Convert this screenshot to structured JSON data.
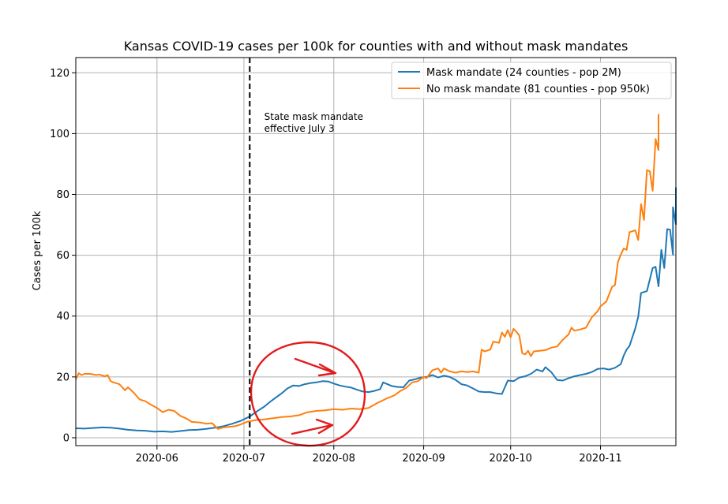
{
  "chart_data": {
    "type": "line",
    "title": "Kansas COVID-19 cases per 100k for counties with and without mask mandates",
    "xlabel": "",
    "ylabel": "Cases per 100k",
    "xlim": [
      "2020-05-04",
      "2020-11-27"
    ],
    "ylim": [
      -2.6,
      125
    ],
    "grid": true,
    "legend_position": "top-right",
    "x_ticks": [
      "2020-06-01",
      "2020-07-01",
      "2020-08-01",
      "2020-09-01",
      "2020-10-01",
      "2020-11-01"
    ],
    "x_tick_labels": [
      "2020-06",
      "2020-07",
      "2020-08",
      "2020-09",
      "2020-10",
      "2020-11"
    ],
    "y_ticks": [
      0,
      20,
      40,
      60,
      80,
      100,
      120
    ],
    "y_tick_labels": [
      "0",
      "20",
      "40",
      "60",
      "80",
      "100",
      "120"
    ],
    "vline": {
      "x": "2020-07-03",
      "style": "dashed",
      "color": "#000000"
    },
    "annotation": {
      "x": "2020-07-08",
      "y": 104.5,
      "lines": [
        "State mask mandate",
        "effective July 3"
      ]
    },
    "series": [
      {
        "name": "Mask mandate (24 counties - pop 2M)",
        "color": "#1f77b4",
        "points": [
          [
            "2020-05-04",
            3.1
          ],
          [
            "2020-05-07",
            3.0
          ],
          [
            "2020-05-10",
            3.2
          ],
          [
            "2020-05-13",
            3.4
          ],
          [
            "2020-05-16",
            3.3
          ],
          [
            "2020-05-19",
            3.0
          ],
          [
            "2020-05-22",
            2.6
          ],
          [
            "2020-05-25",
            2.4
          ],
          [
            "2020-05-28",
            2.3
          ],
          [
            "2020-05-31",
            2.0
          ],
          [
            "2020-06-03",
            2.1
          ],
          [
            "2020-06-06",
            1.9
          ],
          [
            "2020-06-09",
            2.2
          ],
          [
            "2020-06-12",
            2.5
          ],
          [
            "2020-06-15",
            2.6
          ],
          [
            "2020-06-18",
            2.9
          ],
          [
            "2020-06-21",
            3.3
          ],
          [
            "2020-06-24",
            3.8
          ],
          [
            "2020-06-27",
            4.6
          ],
          [
            "2020-06-30",
            5.6
          ],
          [
            "2020-07-03",
            7.0
          ],
          [
            "2020-07-06",
            9.0
          ],
          [
            "2020-07-08",
            10.2
          ],
          [
            "2020-07-10",
            11.8
          ],
          [
            "2020-07-12",
            13.2
          ],
          [
            "2020-07-14",
            14.6
          ],
          [
            "2020-07-16",
            16.2
          ],
          [
            "2020-07-18",
            17.2
          ],
          [
            "2020-07-20",
            17.0
          ],
          [
            "2020-07-22",
            17.6
          ],
          [
            "2020-07-24",
            18.0
          ],
          [
            "2020-07-26",
            18.2
          ],
          [
            "2020-07-28",
            18.6
          ],
          [
            "2020-07-30",
            18.5
          ],
          [
            "2020-08-01",
            17.8
          ],
          [
            "2020-08-03",
            17.2
          ],
          [
            "2020-08-05",
            16.8
          ],
          [
            "2020-08-07",
            16.5
          ],
          [
            "2020-08-09",
            15.8
          ],
          [
            "2020-08-11",
            15.2
          ],
          [
            "2020-08-13",
            15.0
          ],
          [
            "2020-08-15",
            15.4
          ],
          [
            "2020-08-17",
            16.0
          ],
          [
            "2020-08-18",
            18.2
          ],
          [
            "2020-08-19",
            17.8
          ],
          [
            "2020-08-21",
            17.0
          ],
          [
            "2020-08-23",
            16.7
          ],
          [
            "2020-08-25",
            16.6
          ],
          [
            "2020-08-27",
            18.8
          ],
          [
            "2020-08-29",
            19.2
          ],
          [
            "2020-08-31",
            19.8
          ],
          [
            "2020-09-02",
            20.0
          ],
          [
            "2020-09-04",
            20.6
          ],
          [
            "2020-09-06",
            19.8
          ],
          [
            "2020-09-08",
            20.4
          ],
          [
            "2020-09-10",
            20.0
          ],
          [
            "2020-09-12",
            19.0
          ],
          [
            "2020-09-14",
            17.6
          ],
          [
            "2020-09-16",
            17.2
          ],
          [
            "2020-09-18",
            16.2
          ],
          [
            "2020-09-20",
            15.2
          ],
          [
            "2020-09-22",
            15.0
          ],
          [
            "2020-09-24",
            15.0
          ],
          [
            "2020-09-26",
            14.6
          ],
          [
            "2020-09-28",
            14.4
          ],
          [
            "2020-09-30",
            18.8
          ],
          [
            "2020-10-02",
            18.6
          ],
          [
            "2020-10-04",
            19.8
          ],
          [
            "2020-10-06",
            20.2
          ],
          [
            "2020-10-08",
            21.0
          ],
          [
            "2020-10-10",
            22.4
          ],
          [
            "2020-10-12",
            21.8
          ],
          [
            "2020-10-13",
            23.2
          ],
          [
            "2020-10-15",
            21.6
          ],
          [
            "2020-10-17",
            19.0
          ],
          [
            "2020-10-19",
            18.8
          ],
          [
            "2020-10-21",
            19.6
          ],
          [
            "2020-10-23",
            20.2
          ],
          [
            "2020-10-25",
            20.6
          ],
          [
            "2020-10-27",
            21.0
          ],
          [
            "2020-10-29",
            21.6
          ],
          [
            "2020-10-31",
            22.6
          ],
          [
            "2020-11-02",
            22.8
          ],
          [
            "2020-11-04",
            22.4
          ],
          [
            "2020-11-06",
            23.0
          ],
          [
            "2020-11-08",
            24.2
          ],
          [
            "2020-11-09",
            27.0
          ],
          [
            "2020-11-10",
            29.0
          ],
          [
            "2020-11-11",
            30.2
          ],
          [
            "2020-11-13",
            36.0
          ],
          [
            "2020-11-14",
            39.8
          ],
          [
            "2020-11-15",
            47.6
          ],
          [
            "2020-11-17",
            48.2
          ],
          [
            "2020-11-19",
            55.8
          ],
          [
            "2020-11-20",
            56.2
          ],
          [
            "2020-11-21",
            49.8
          ],
          [
            "2020-11-22",
            61.8
          ],
          [
            "2020-11-23",
            55.8
          ],
          [
            "2020-11-24",
            68.6
          ],
          [
            "2020-11-25",
            68.4
          ],
          [
            "2020-11-26",
            60.2
          ],
          [
            "2020-11-26",
            75.8
          ],
          [
            "2020-11-27",
            70.2
          ],
          [
            "2020-11-27",
            82.3
          ]
        ]
      },
      {
        "name": "No mask mandate (81 counties - pop 950k)",
        "color": "#ff7f0e",
        "points": [
          [
            "2020-05-04",
            19.2
          ],
          [
            "2020-05-05",
            21.2
          ],
          [
            "2020-05-06",
            20.6
          ],
          [
            "2020-05-07",
            21.0
          ],
          [
            "2020-05-09",
            21.0
          ],
          [
            "2020-05-11",
            20.6
          ],
          [
            "2020-05-12",
            20.8
          ],
          [
            "2020-05-14",
            20.2
          ],
          [
            "2020-05-15",
            20.6
          ],
          [
            "2020-05-16",
            18.6
          ],
          [
            "2020-05-17",
            18.2
          ],
          [
            "2020-05-19",
            17.6
          ],
          [
            "2020-05-21",
            15.6
          ],
          [
            "2020-05-22",
            16.6
          ],
          [
            "2020-05-24",
            14.8
          ],
          [
            "2020-05-26",
            12.6
          ],
          [
            "2020-05-28",
            12.0
          ],
          [
            "2020-05-30",
            10.8
          ],
          [
            "2020-06-01",
            9.8
          ],
          [
            "2020-06-03",
            8.4
          ],
          [
            "2020-06-05",
            9.2
          ],
          [
            "2020-06-07",
            8.8
          ],
          [
            "2020-06-09",
            7.2
          ],
          [
            "2020-06-11",
            6.4
          ],
          [
            "2020-06-13",
            5.2
          ],
          [
            "2020-06-16",
            5.0
          ],
          [
            "2020-06-18",
            4.6
          ],
          [
            "2020-06-20",
            4.8
          ],
          [
            "2020-06-22",
            2.9
          ],
          [
            "2020-06-24",
            3.4
          ],
          [
            "2020-06-26",
            3.6
          ],
          [
            "2020-06-28",
            3.8
          ],
          [
            "2020-06-30",
            4.4
          ],
          [
            "2020-07-02",
            5.2
          ],
          [
            "2020-07-05",
            5.8
          ],
          [
            "2020-07-08",
            6.0
          ],
          [
            "2020-07-11",
            6.4
          ],
          [
            "2020-07-14",
            6.8
          ],
          [
            "2020-07-17",
            7.0
          ],
          [
            "2020-07-20",
            7.4
          ],
          [
            "2020-07-23",
            8.4
          ],
          [
            "2020-07-26",
            8.8
          ],
          [
            "2020-07-29",
            9.0
          ],
          [
            "2020-08-01",
            9.4
          ],
          [
            "2020-08-04",
            9.2
          ],
          [
            "2020-08-07",
            9.6
          ],
          [
            "2020-08-10",
            9.4
          ],
          [
            "2020-08-13",
            9.8
          ],
          [
            "2020-08-16",
            11.4
          ],
          [
            "2020-08-19",
            12.8
          ],
          [
            "2020-08-22",
            14.0
          ],
          [
            "2020-08-24",
            15.4
          ],
          [
            "2020-08-26",
            16.4
          ],
          [
            "2020-08-28",
            18.2
          ],
          [
            "2020-08-30",
            18.6
          ],
          [
            "2020-09-01",
            20.0
          ],
          [
            "2020-09-02",
            19.6
          ],
          [
            "2020-09-04",
            22.2
          ],
          [
            "2020-09-06",
            22.8
          ],
          [
            "2020-09-07",
            21.4
          ],
          [
            "2020-09-08",
            22.8
          ],
          [
            "2020-09-10",
            21.8
          ],
          [
            "2020-09-12",
            21.4
          ],
          [
            "2020-09-14",
            21.8
          ],
          [
            "2020-09-16",
            21.6
          ],
          [
            "2020-09-18",
            21.8
          ],
          [
            "2020-09-20",
            21.4
          ],
          [
            "2020-09-21",
            29.0
          ],
          [
            "2020-09-22",
            28.4
          ],
          [
            "2020-09-24",
            29.0
          ],
          [
            "2020-09-25",
            31.6
          ],
          [
            "2020-09-27",
            31.2
          ],
          [
            "2020-09-28",
            34.6
          ],
          [
            "2020-09-29",
            33.2
          ],
          [
            "2020-09-30",
            35.4
          ],
          [
            "2020-10-01",
            33.0
          ],
          [
            "2020-10-02",
            35.8
          ],
          [
            "2020-10-03",
            34.8
          ],
          [
            "2020-10-04",
            33.6
          ],
          [
            "2020-10-05",
            27.8
          ],
          [
            "2020-10-06",
            27.4
          ],
          [
            "2020-10-07",
            28.6
          ],
          [
            "2020-10-08",
            26.8
          ],
          [
            "2020-10-09",
            28.4
          ],
          [
            "2020-10-11",
            28.6
          ],
          [
            "2020-10-13",
            28.8
          ],
          [
            "2020-10-15",
            29.6
          ],
          [
            "2020-10-17",
            30.0
          ],
          [
            "2020-10-19",
            32.2
          ],
          [
            "2020-10-21",
            34.0
          ],
          [
            "2020-10-22",
            36.2
          ],
          [
            "2020-10-23",
            35.2
          ],
          [
            "2020-10-25",
            35.6
          ],
          [
            "2020-10-27",
            36.2
          ],
          [
            "2020-10-29",
            39.6
          ],
          [
            "2020-10-31",
            41.6
          ],
          [
            "2020-11-01",
            43.2
          ],
          [
            "2020-11-03",
            44.8
          ],
          [
            "2020-11-05",
            49.6
          ],
          [
            "2020-11-06",
            50.2
          ],
          [
            "2020-11-07",
            57.8
          ],
          [
            "2020-11-08",
            60.2
          ],
          [
            "2020-11-09",
            62.2
          ],
          [
            "2020-11-10",
            61.8
          ],
          [
            "2020-11-11",
            67.6
          ],
          [
            "2020-11-13",
            68.2
          ],
          [
            "2020-11-14",
            65.0
          ],
          [
            "2020-11-15",
            76.8
          ],
          [
            "2020-11-16",
            71.6
          ],
          [
            "2020-11-17",
            88.0
          ],
          [
            "2020-11-18",
            87.6
          ],
          [
            "2020-11-19",
            81.2
          ],
          [
            "2020-11-20",
            98.2
          ],
          [
            "2020-11-21",
            94.6
          ],
          [
            "2020-11-21",
            106.4
          ]
        ]
      }
    ]
  },
  "markup_overlay": {
    "description_note": "",
    "color": "#e31a1c"
  }
}
